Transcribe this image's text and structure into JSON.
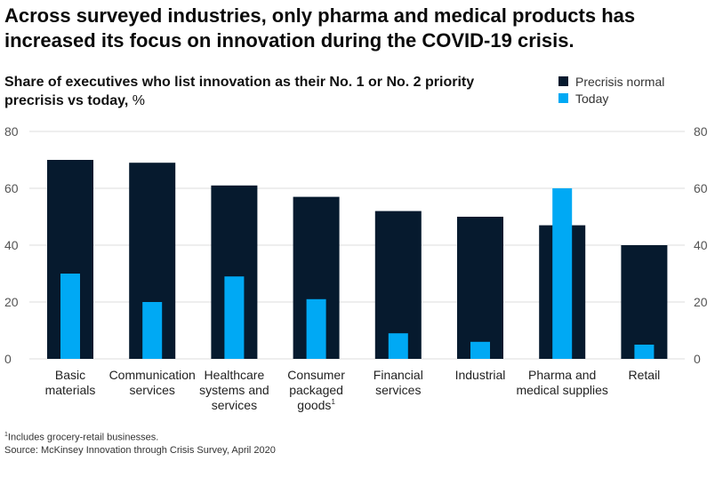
{
  "title": "Across surveyed industries, only pharma and medical products has increased its focus on innovation during the COVID-19 crisis.",
  "subtitle": "Share of executives who list innovation as their No. 1 or No. 2 priority precrisis vs today,",
  "subtitle_unit": "%",
  "colors": {
    "precrisis": "#061a2e",
    "today": "#00a9f4",
    "grid": "#dddddd",
    "axis_text": "#555555"
  },
  "chart_data": {
    "type": "bar",
    "ylim": [
      0,
      80
    ],
    "yticks": [
      0,
      20,
      40,
      60,
      80
    ],
    "tick_labels": [
      "0",
      "20",
      "40",
      "60",
      "80"
    ],
    "grid": true,
    "legend_position": "top-right",
    "categories": [
      [
        "Basic",
        "materials"
      ],
      [
        "Communication",
        "services"
      ],
      [
        "Healthcare",
        "systems and",
        "services"
      ],
      [
        "Consumer",
        "packaged",
        "goods"
      ],
      [
        "Financial",
        "services"
      ],
      [
        "Industrial"
      ],
      [
        "Pharma and",
        "medical supplies"
      ],
      [
        "Retail"
      ]
    ],
    "category_footnotes": [
      "",
      "",
      "",
      "1",
      "",
      "",
      "",
      ""
    ],
    "series": [
      {
        "name": "Precrisis normal",
        "values": [
          70,
          69,
          61,
          57,
          52,
          50,
          47,
          40
        ]
      },
      {
        "name": "Today",
        "values": [
          30,
          20,
          29,
          21,
          9,
          6,
          60,
          5
        ]
      }
    ]
  },
  "footnotes": {
    "note_marker": "1",
    "note_text": "Includes grocery-retail businesses.",
    "source": "Source: McKinsey Innovation through Crisis Survey, April 2020"
  }
}
